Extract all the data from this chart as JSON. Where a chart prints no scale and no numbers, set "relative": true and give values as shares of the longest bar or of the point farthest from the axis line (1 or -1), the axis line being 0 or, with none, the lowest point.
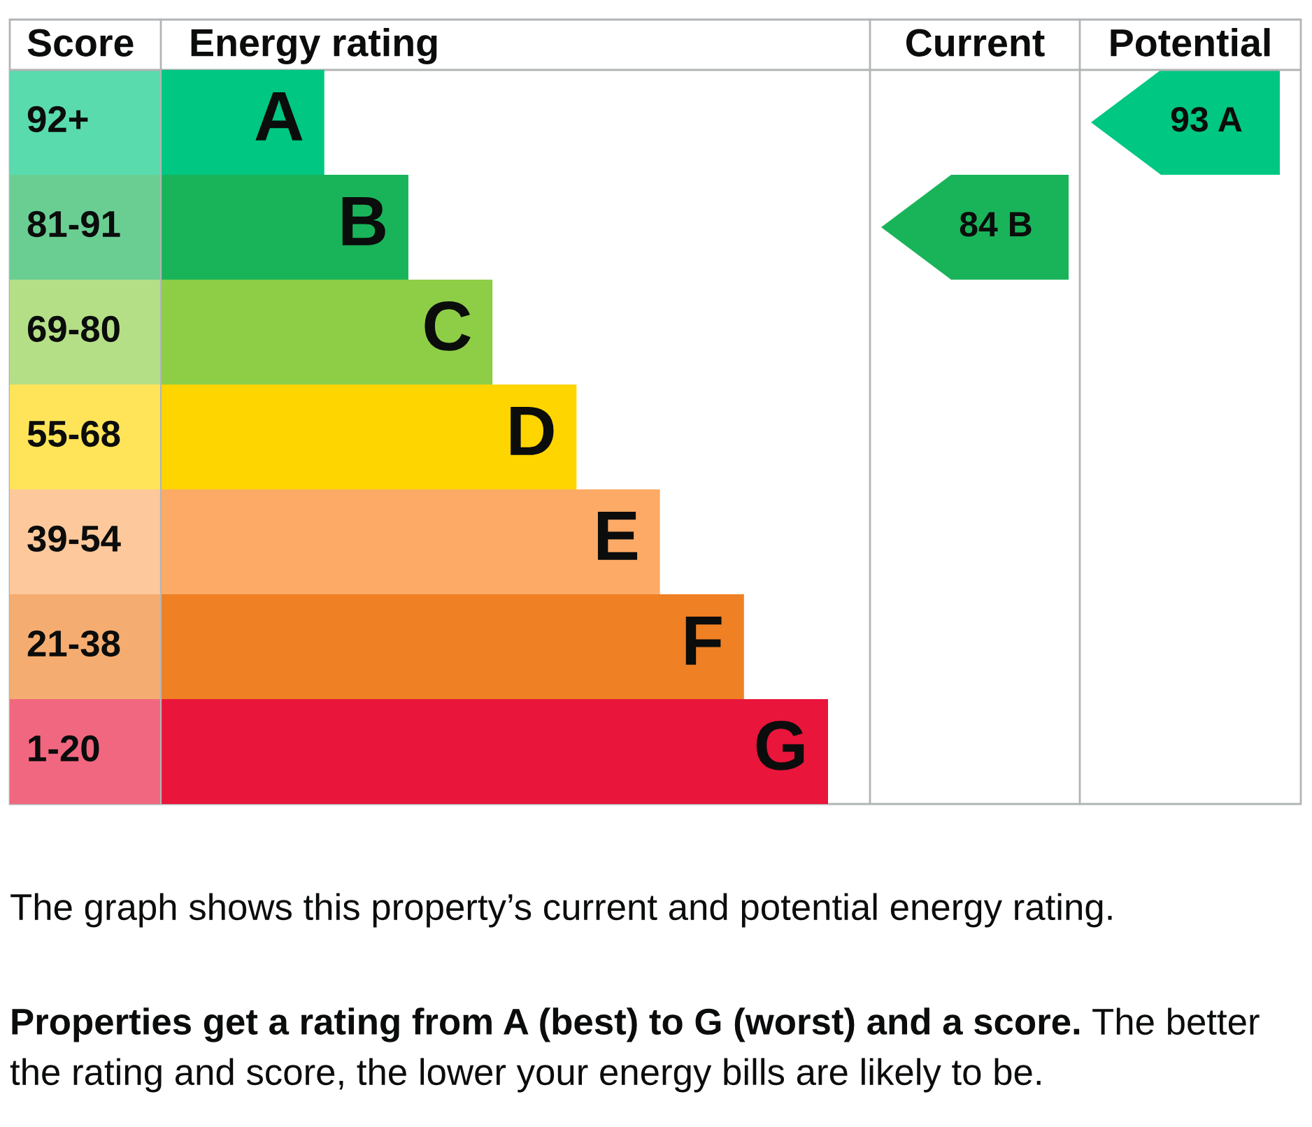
{
  "chart_data": {
    "type": "bar",
    "orientation": "horizontal",
    "relative": true,
    "xlabel": "Energy rating",
    "ylabel": "Score",
    "categories": [
      "A",
      "B",
      "C",
      "D",
      "E",
      "F",
      "G"
    ],
    "values": [
      0.245,
      0.371,
      0.497,
      0.623,
      0.748,
      0.874,
      1
    ],
    "colors": [
      "#00c781",
      "#19b459",
      "#8dce46",
      "#ffd500",
      "#fcaa65",
      "#ef8023",
      "#e9153b"
    ],
    "annotations": [
      "92+",
      "81-91",
      "69-80",
      "55-68",
      "39-54",
      "21-38",
      "1-20",
      "84 B",
      "93 A",
      "Current",
      "Potential",
      "The graph shows this property’s current and potential energy rating.",
      "Properties get a rating from A (best) to G (worst) and a score.",
      "The better",
      "the rating and score, the lower your energy bills are likely to be."
    ]
  }
}
